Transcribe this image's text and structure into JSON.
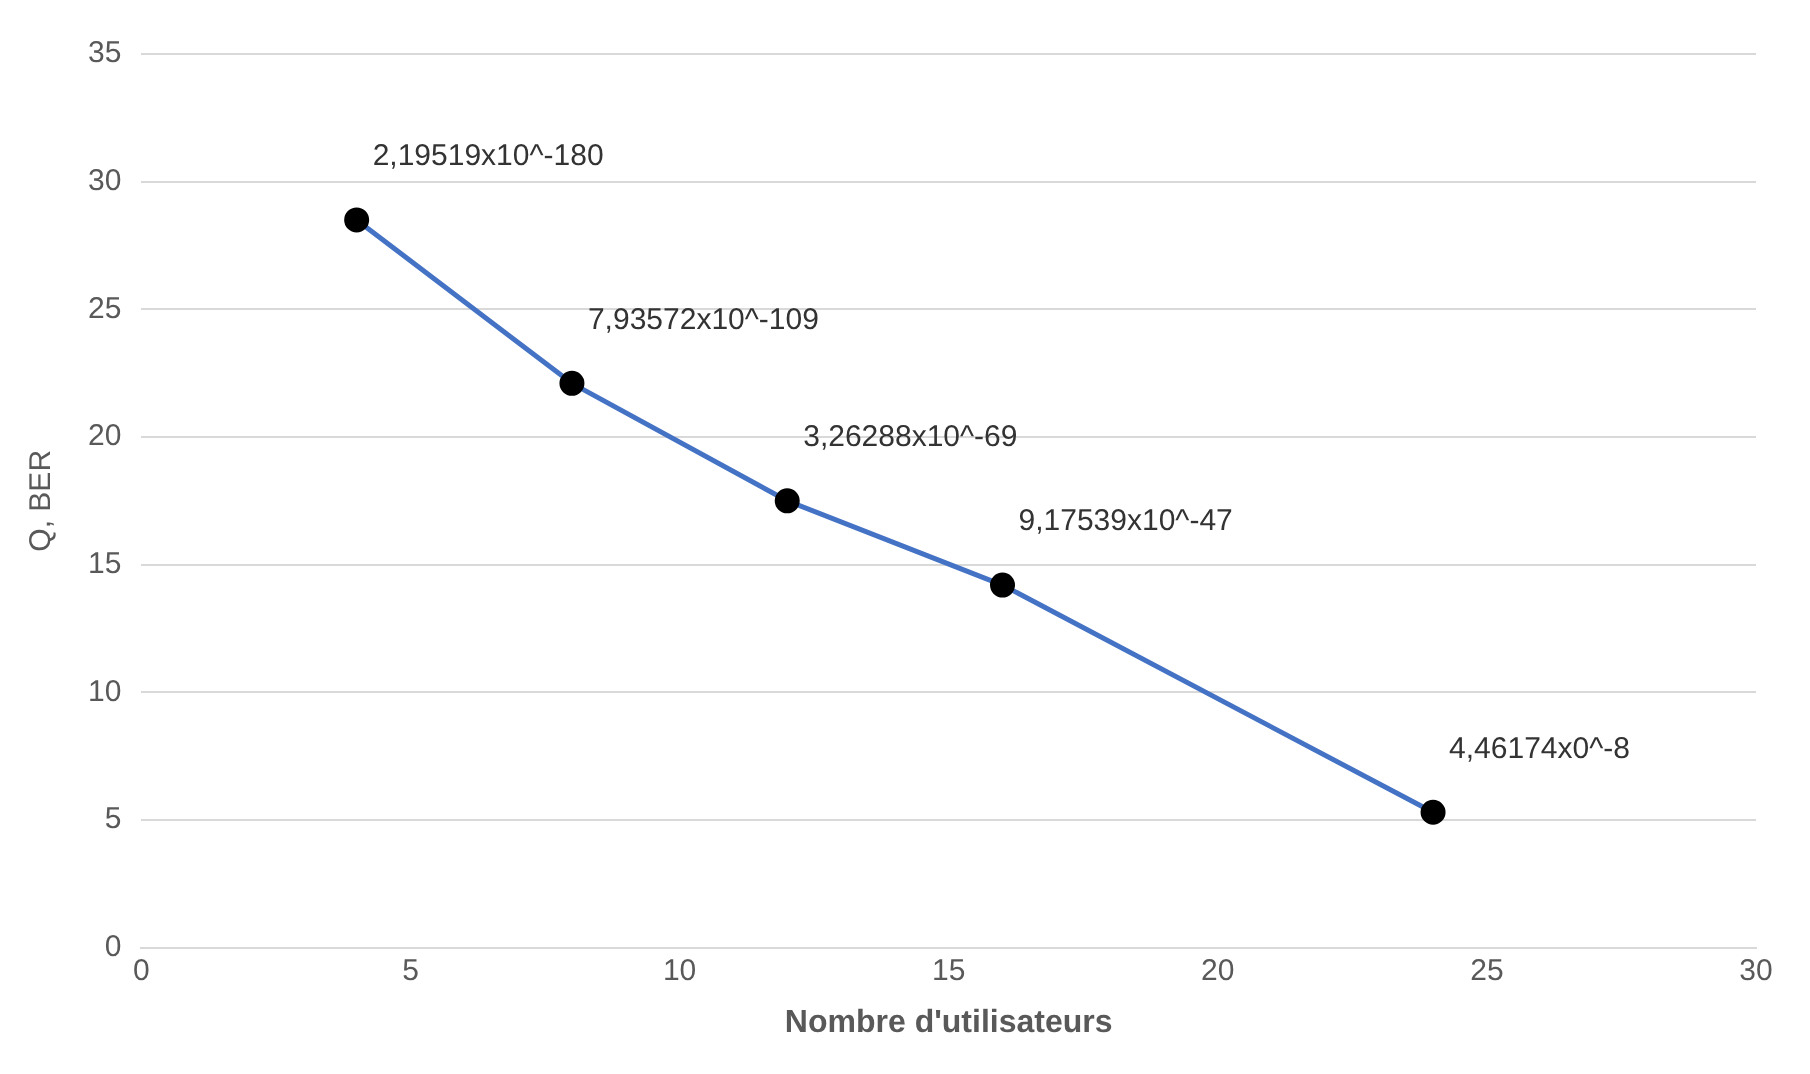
{
  "chart_data": {
    "type": "line",
    "xlabel": "Nombre d'utilisateurs",
    "ylabel": "Q, BER",
    "x": [
      4,
      8,
      12,
      16,
      24
    ],
    "series": [
      {
        "color": "#4472c4",
        "values": [
          28.5,
          22.1,
          17.5,
          14.2,
          5.3
        ]
      }
    ],
    "xlim": [
      0,
      30
    ],
    "xticks": [
      0,
      5,
      10,
      15,
      20,
      25,
      30
    ],
    "ylim": [
      0,
      35
    ],
    "yticks": [
      0,
      5,
      10,
      15,
      20,
      25,
      30,
      35
    ],
    "grid": "y",
    "marker": "circle",
    "line_style": "solid",
    "legend": false,
    "annotations": [
      {
        "text": "2,19519x10^-180",
        "x": 4,
        "y": 28.5
      },
      {
        "text": "7,93572x10^-109",
        "x": 8,
        "y": 22.1
      },
      {
        "text": "3,26288x10^-69",
        "x": 12,
        "y": 17.5
      },
      {
        "text": "9,17539x10^-47",
        "x": 16,
        "y": 14.2
      },
      {
        "text": "4,46174x0^-8",
        "x": 24,
        "y": 5.3
      }
    ]
  }
}
